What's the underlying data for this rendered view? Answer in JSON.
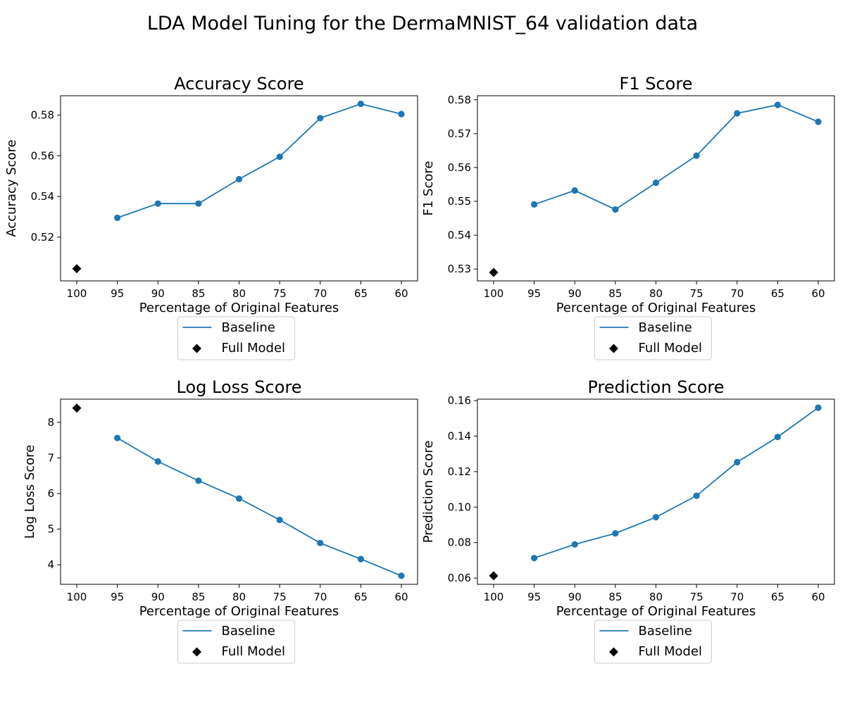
{
  "figure": {
    "title": "LDA Model Tuning for the DermaMNIST_64 validation data",
    "colors": {
      "series": "#1f77b4",
      "full_model": "#000000",
      "axis": "#000000",
      "legend_border": "#cccccc"
    }
  },
  "chart_data": [
    {
      "type": "line",
      "title": "Accuracy Score",
      "xlabel": "Percentage of Original Features",
      "ylabel": "Accuracy Score",
      "x_ticks": [
        "100",
        "95",
        "90",
        "85",
        "80",
        "75",
        "70",
        "65",
        "60"
      ],
      "y_ticks": [
        "0.52",
        "0.54",
        "0.56",
        "0.58"
      ],
      "ylim": [
        0.4985,
        0.5895
      ],
      "series": [
        {
          "name": "Baseline",
          "marker": "circle",
          "x": [
            "95",
            "90",
            "85",
            "80",
            "75",
            "70",
            "65",
            "60"
          ],
          "values": [
            0.5295,
            0.5365,
            0.5365,
            0.5485,
            0.5595,
            0.5785,
            0.5855,
            0.5805
          ]
        },
        {
          "name": "Full Model",
          "marker": "diamond",
          "x": [
            "100"
          ],
          "values": [
            0.5045
          ]
        }
      ],
      "legend": {
        "placement": "below",
        "entries": [
          "Baseline",
          "Full Model"
        ]
      }
    },
    {
      "type": "line",
      "title": "F1 Score",
      "xlabel": "Percentage of Original Features",
      "ylabel": "F1 Score",
      "x_ticks": [
        "100",
        "95",
        "90",
        "85",
        "80",
        "75",
        "70",
        "65",
        "60"
      ],
      "y_ticks": [
        "0.53",
        "0.54",
        "0.55",
        "0.56",
        "0.57",
        "0.58"
      ],
      "ylim": [
        0.5265,
        0.5812
      ],
      "series": [
        {
          "name": "Baseline",
          "marker": "circle",
          "x": [
            "95",
            "90",
            "85",
            "80",
            "75",
            "70",
            "65",
            "60"
          ],
          "values": [
            0.5491,
            0.5532,
            0.5476,
            0.5555,
            0.5635,
            0.576,
            0.5785,
            0.5735
          ]
        },
        {
          "name": "Full Model",
          "marker": "diamond",
          "x": [
            "100"
          ],
          "values": [
            0.529
          ]
        }
      ],
      "legend": {
        "placement": "below",
        "entries": [
          "Baseline",
          "Full Model"
        ]
      }
    },
    {
      "type": "line",
      "title": "Log Loss Score",
      "xlabel": "Percentage of Original Features",
      "ylabel": "Log Loss Score",
      "x_ticks": [
        "100",
        "95",
        "90",
        "85",
        "80",
        "75",
        "70",
        "65",
        "60"
      ],
      "y_ticks": [
        "4",
        "5",
        "6",
        "7",
        "8"
      ],
      "ylim": [
        3.45,
        8.65
      ],
      "series": [
        {
          "name": "Baseline",
          "marker": "circle",
          "x": [
            "95",
            "90",
            "85",
            "80",
            "75",
            "70",
            "65",
            "60"
          ],
          "values": [
            7.56,
            6.9,
            6.36,
            5.86,
            5.26,
            4.61,
            4.16,
            3.69
          ]
        },
        {
          "name": "Full Model",
          "marker": "diamond",
          "x": [
            "100"
          ],
          "values": [
            8.4
          ]
        }
      ],
      "legend": {
        "placement": "below",
        "entries": [
          "Baseline",
          "Full Model"
        ]
      }
    },
    {
      "type": "line",
      "title": "Prediction Score",
      "xlabel": "Percentage of Original Features",
      "ylabel": "Prediction Score",
      "x_ticks": [
        "100",
        "95",
        "90",
        "85",
        "80",
        "75",
        "70",
        "65",
        "60"
      ],
      "y_ticks": [
        "0.06",
        "0.08",
        "0.10",
        "0.12",
        "0.14",
        "0.16"
      ],
      "ylim": [
        0.0565,
        0.1608
      ],
      "series": [
        {
          "name": "Baseline",
          "marker": "circle",
          "x": [
            "95",
            "90",
            "85",
            "80",
            "75",
            "70",
            "65",
            "60"
          ],
          "values": [
            0.0713,
            0.079,
            0.0852,
            0.0943,
            0.1064,
            0.1253,
            0.1395,
            0.156
          ]
        },
        {
          "name": "Full Model",
          "marker": "diamond",
          "x": [
            "100"
          ],
          "values": [
            0.0613
          ]
        }
      ],
      "legend": {
        "placement": "below",
        "entries": [
          "Baseline",
          "Full Model"
        ]
      }
    }
  ]
}
